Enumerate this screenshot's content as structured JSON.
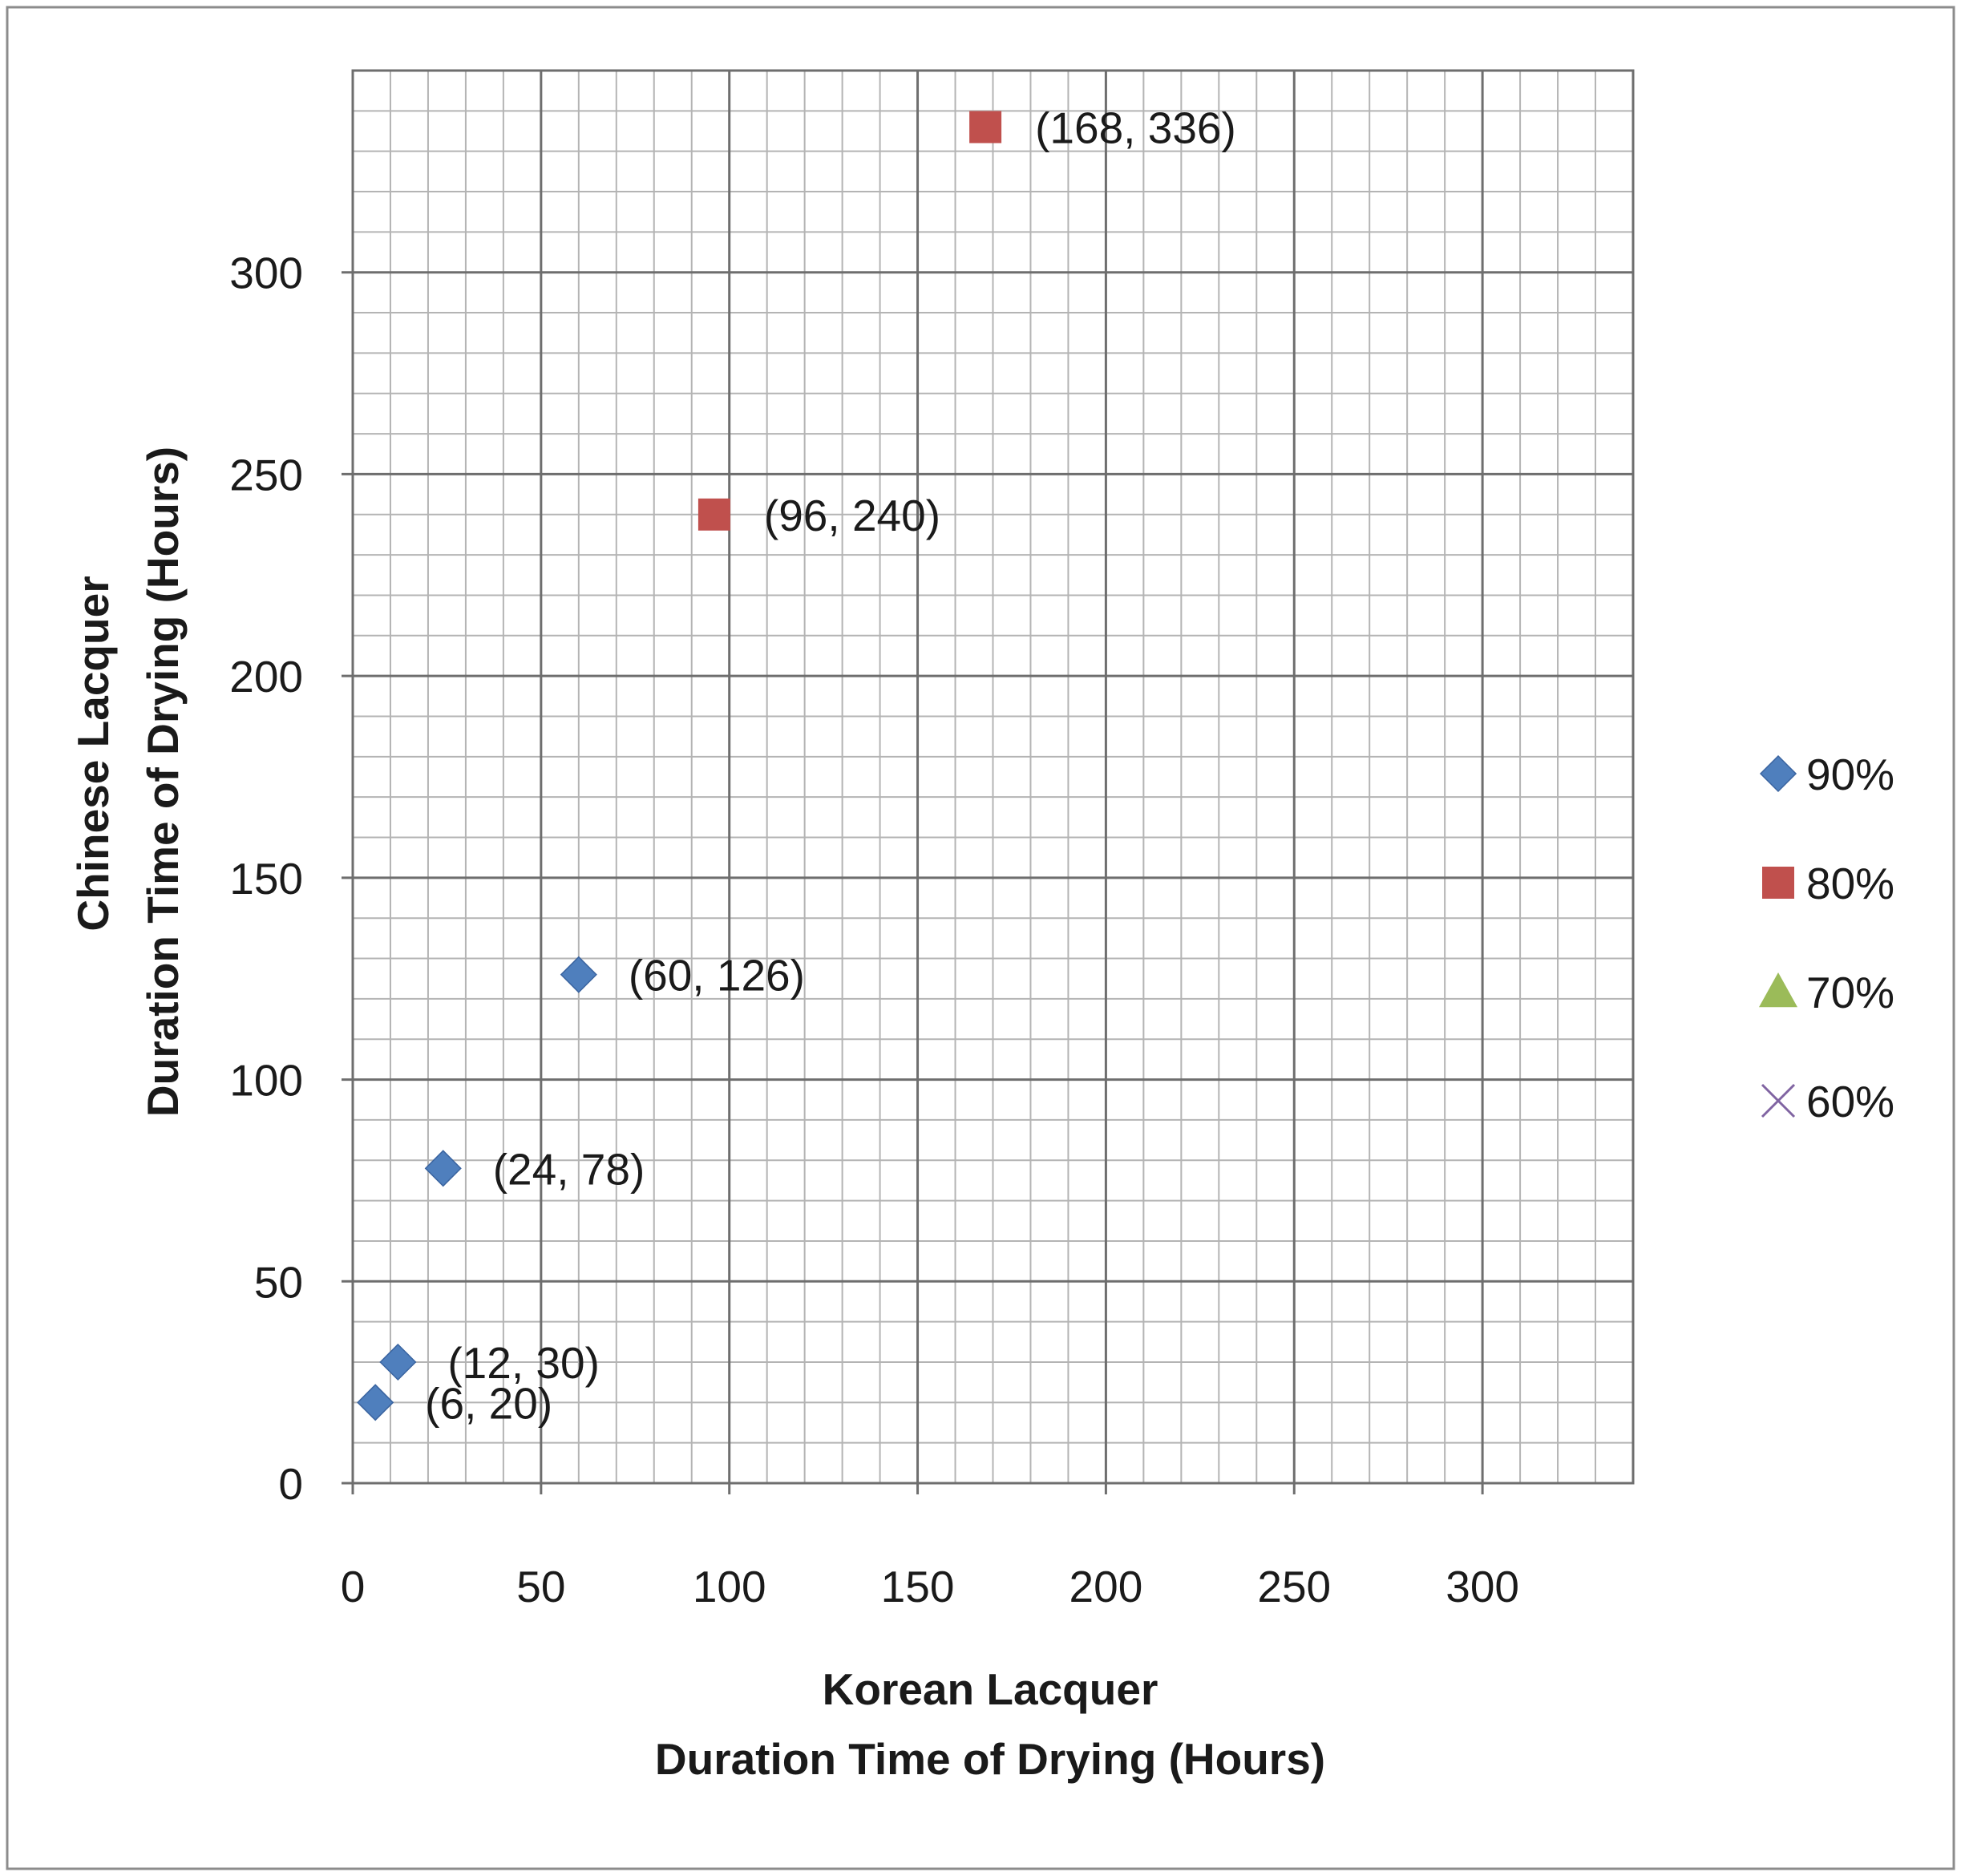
{
  "chart_data": {
    "type": "scatter",
    "x_title_lines": [
      "Korean Lacquer",
      "Duration Time of Drying (Hours)"
    ],
    "y_title_lines": [
      "Chinese Lacquer",
      "Duration Time of Drying (Hours)"
    ],
    "xlim": [
      0,
      340
    ],
    "ylim": [
      0,
      350
    ],
    "x_ticks": [
      0,
      50,
      100,
      150,
      200,
      250,
      300
    ],
    "y_ticks": [
      0,
      50,
      100,
      150,
      200,
      250,
      300
    ],
    "minor_step": 10,
    "grid": true,
    "legend_position": "right",
    "series": [
      {
        "name": "90%",
        "marker": "diamond",
        "color": "#4f7fbd",
        "points": [
          {
            "x": 6,
            "y": 20,
            "label": "(6, 20)"
          },
          {
            "x": 12,
            "y": 30,
            "label": "(12, 30)"
          },
          {
            "x": 24,
            "y": 78,
            "label": "(24, 78)"
          },
          {
            "x": 60,
            "y": 126,
            "label": "(60, 126)"
          }
        ]
      },
      {
        "name": "80%",
        "marker": "square",
        "color": "#c0504d",
        "points": [
          {
            "x": 96,
            "y": 240,
            "label": "(96, 240)"
          },
          {
            "x": 168,
            "y": 336,
            "label": "(168, 336)"
          }
        ]
      },
      {
        "name": "70%",
        "marker": "triangle",
        "color": "#9bbb59",
        "points": []
      },
      {
        "name": "60%",
        "marker": "x",
        "color": "#8064a2",
        "points": []
      }
    ]
  }
}
